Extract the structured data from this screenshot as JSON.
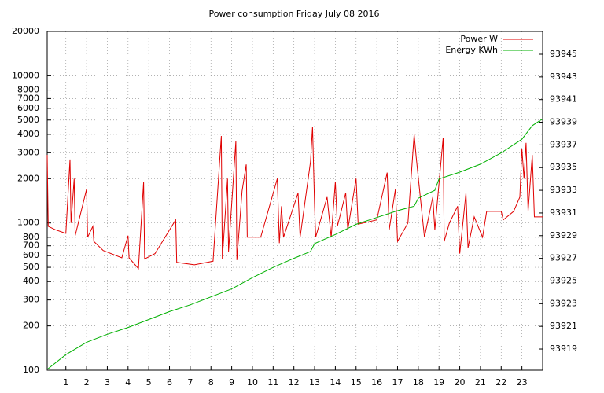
{
  "chart_data": {
    "type": "line",
    "title": "Power consumption Friday July 08 2016",
    "xlim": [
      0.1,
      24.0
    ],
    "xticks": [
      1,
      2,
      3,
      4,
      5,
      6,
      7,
      8,
      9,
      10,
      11,
      12,
      13,
      14,
      15,
      16,
      17,
      18,
      19,
      20,
      21,
      22,
      23
    ],
    "ylim": [
      100,
      20000
    ],
    "ylog": true,
    "yticks": [
      100,
      200,
      300,
      400,
      500,
      600,
      700,
      800,
      1000,
      2000,
      3000,
      4000,
      5000,
      6000,
      7000,
      8000,
      10000,
      20000
    ],
    "y2lim": [
      93917.13,
      93947.01
    ],
    "y2ticks": [
      93919,
      93921,
      93923,
      93925,
      93927,
      93929,
      93931,
      93933,
      93935,
      93937,
      93939,
      93941,
      93943,
      93945
    ],
    "grid": true,
    "legend": "top-right",
    "series": [
      {
        "name": "Power W",
        "color": "#e00000",
        "x": [
          0.1,
          0.15,
          0.5,
          1.0,
          1.2,
          1.25,
          1.4,
          1.45,
          2.0,
          2.05,
          2.3,
          2.35,
          2.8,
          3.7,
          4.0,
          4.05,
          4.5,
          4.75,
          4.8,
          5.3,
          6.3,
          6.35,
          7.2,
          8.1,
          8.5,
          8.55,
          8.8,
          8.85,
          9.2,
          9.25,
          9.5,
          9.7,
          9.75,
          10.4,
          11.2,
          11.3,
          11.4,
          11.5,
          12.2,
          12.3,
          12.8,
          12.9,
          13.0,
          13.05,
          13.6,
          13.8,
          14.0,
          14.1,
          14.5,
          14.6,
          15.0,
          15.1,
          16.0,
          16.5,
          16.6,
          16.9,
          17.0,
          17.5,
          17.8,
          17.9,
          18.3,
          18.7,
          18.8,
          19.2,
          19.25,
          19.5,
          19.9,
          20.0,
          20.3,
          20.4,
          20.7,
          21.1,
          21.3,
          22.0,
          22.1,
          22.6,
          22.9,
          23.0,
          23.1,
          23.2,
          23.3,
          23.5,
          23.6,
          24.0
        ],
        "values": [
          2900,
          950,
          900,
          850,
          2700,
          1000,
          2000,
          820,
          1700,
          800,
          950,
          750,
          650,
          580,
          820,
          580,
          490,
          1900,
          570,
          620,
          1050,
          540,
          520,
          550,
          3900,
          570,
          2000,
          640,
          3600,
          560,
          1650,
          2500,
          800,
          800,
          2000,
          730,
          1300,
          800,
          1600,
          800,
          2600,
          4500,
          1300,
          800,
          1500,
          800,
          1900,
          950,
          1600,
          900,
          2000,
          980,
          1050,
          2200,
          900,
          1700,
          750,
          1000,
          4000,
          2800,
          800,
          1500,
          900,
          3800,
          750,
          1000,
          1300,
          620,
          1600,
          680,
          1100,
          800,
          1200,
          1200,
          1050,
          1200,
          1500,
          3200,
          2000,
          3500,
          1200,
          2900,
          1100,
          1100
        ]
      },
      {
        "name": "Energy KWh",
        "color": "#00b000",
        "axis": "y2",
        "x": [
          0.1,
          1,
          2,
          3,
          4,
          5,
          6,
          7,
          8,
          9,
          10,
          11,
          12,
          12.8,
          13,
          14,
          15,
          16,
          17,
          17.8,
          18,
          18.8,
          19,
          20,
          21,
          22,
          23,
          23.5,
          24
        ],
        "values": [
          93917.2,
          93918.5,
          93919.6,
          93920.3,
          93920.9,
          93921.6,
          93922.3,
          93922.9,
          93923.6,
          93924.3,
          93925.3,
          93926.2,
          93927.0,
          93927.6,
          93928.3,
          93929.1,
          93930.0,
          93930.6,
          93931.2,
          93931.6,
          93932.3,
          93933.0,
          93934.0,
          93934.6,
          93935.3,
          93936.3,
          93937.5,
          93938.7,
          93939.3
        ]
      }
    ]
  }
}
